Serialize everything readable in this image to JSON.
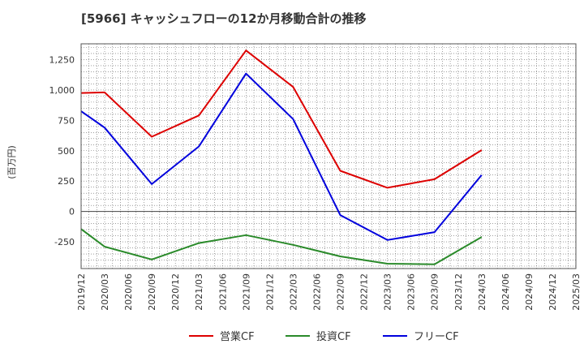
{
  "chart_data": {
    "type": "line",
    "title": "[5966]  キャッシュフローの12か月移動合計の推移",
    "ylabel": "(百万円)",
    "xlabel": "",
    "ylim": [
      -470,
      1380
    ],
    "yticks": [
      -250,
      0,
      250,
      500,
      750,
      1000,
      1250
    ],
    "ytick_labels": [
      "-250",
      "0",
      "250",
      "500",
      "750",
      "1,000",
      "1,250"
    ],
    "x_ticks": [
      "2019/12",
      "2020/03",
      "2020/06",
      "2020/09",
      "2020/12",
      "2021/03",
      "2021/06",
      "2021/09",
      "2021/12",
      "2022/03",
      "2022/06",
      "2022/09",
      "2022/12",
      "2023/03",
      "2023/06",
      "2023/09",
      "2023/12",
      "2024/03",
      "2024/06",
      "2024/09",
      "2024/12",
      "2025/03"
    ],
    "series": [
      {
        "name": "営業CF",
        "color": "#dd0000",
        "x": [
          "2019/12",
          "2020/03",
          "2020/09",
          "2021/03",
          "2021/09",
          "2022/03",
          "2022/09",
          "2023/03",
          "2023/09",
          "2024/03"
        ],
        "values": [
          975,
          980,
          615,
          790,
          1325,
          1025,
          335,
          195,
          265,
          505
        ]
      },
      {
        "name": "投資CF",
        "color": "#2a8a2a",
        "x": [
          "2019/12",
          "2020/03",
          "2020/09",
          "2021/03",
          "2021/09",
          "2022/03",
          "2022/09",
          "2023/03",
          "2023/09",
          "2024/03"
        ],
        "values": [
          -145,
          -290,
          -395,
          -260,
          -195,
          -275,
          -370,
          -430,
          -435,
          -210
        ]
      },
      {
        "name": "フリーCF",
        "color": "#0000dd",
        "x": [
          "2019/12",
          "2020/03",
          "2020/09",
          "2021/03",
          "2021/09",
          "2022/03",
          "2022/09",
          "2023/03",
          "2023/09",
          "2024/03"
        ],
        "values": [
          825,
          690,
          225,
          535,
          1135,
          760,
          -30,
          -235,
          -170,
          300
        ]
      }
    ],
    "grid": true,
    "legend_position": "bottom-center"
  }
}
